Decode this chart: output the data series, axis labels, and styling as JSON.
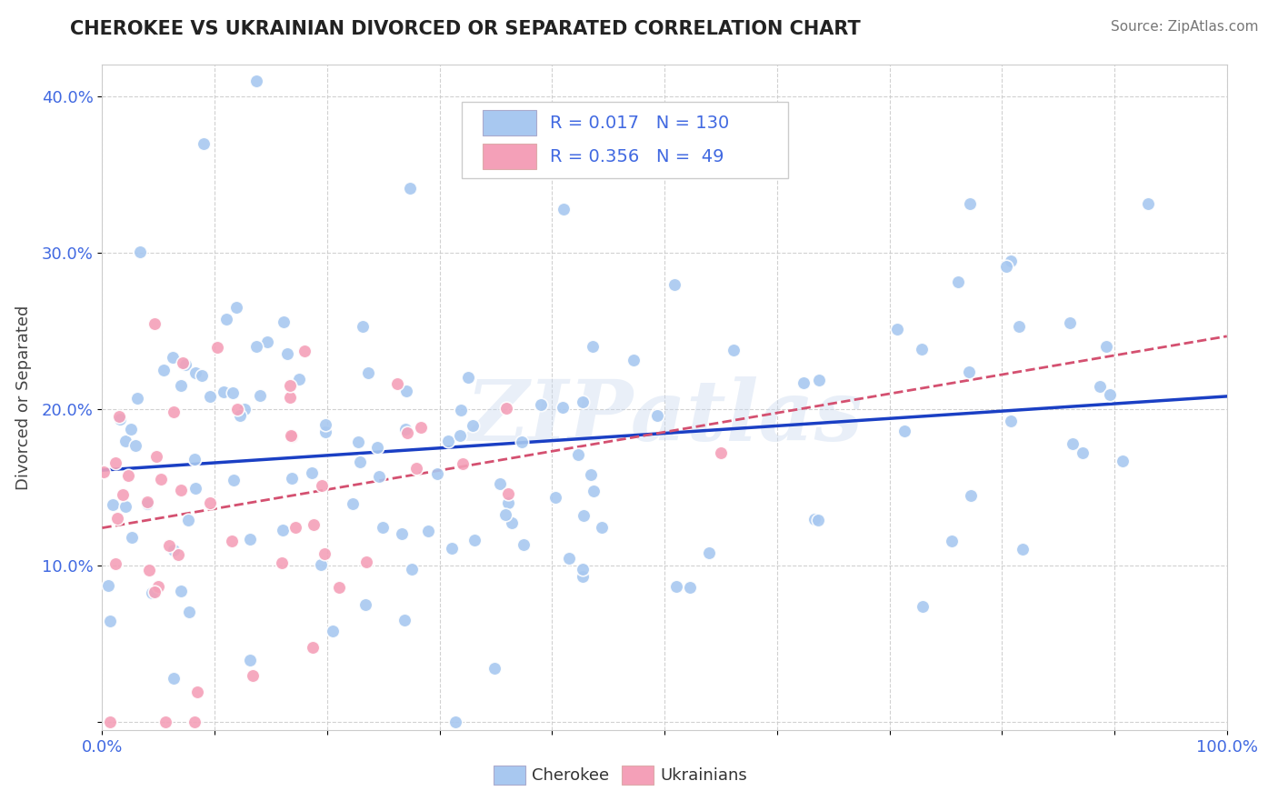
{
  "title": "CHEROKEE VS UKRAINIAN DIVORCED OR SEPARATED CORRELATION CHART",
  "source": "Source: ZipAtlas.com",
  "ylabel": "Divorced or Separated",
  "xlabel": "",
  "xlim": [
    0.0,
    1.0
  ],
  "ylim": [
    -0.005,
    0.42
  ],
  "xticks": [
    0.0,
    0.1,
    0.2,
    0.3,
    0.4,
    0.5,
    0.6,
    0.7,
    0.8,
    0.9,
    1.0
  ],
  "yticks": [
    0.0,
    0.1,
    0.2,
    0.3,
    0.4
  ],
  "ytick_labels": [
    "",
    "10.0%",
    "20.0%",
    "30.0%",
    "40.0%"
  ],
  "xtick_labels": [
    "0.0%",
    "",
    "",
    "",
    "",
    "",
    "",
    "",
    "",
    "",
    "100.0%"
  ],
  "cherokee_R": 0.017,
  "cherokee_N": 130,
  "ukrainian_R": 0.356,
  "ukrainian_N": 49,
  "cherokee_color": "#a8c8f0",
  "ukrainian_color": "#f4a0b8",
  "cherokee_line_color": "#1a3fc4",
  "ukrainian_line_color": "#d45070",
  "watermark": "ZIPatlas",
  "background_color": "#ffffff",
  "grid_color": "#cccccc",
  "seed": 42,
  "tick_color": "#4169e1",
  "title_color": "#222222",
  "source_color": "#777777"
}
